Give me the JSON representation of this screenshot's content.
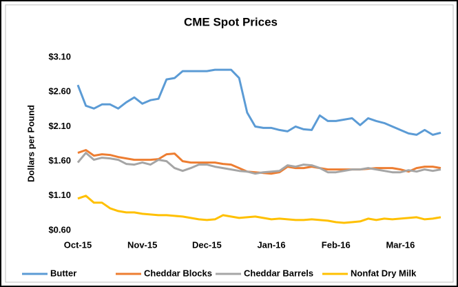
{
  "chart_data": {
    "type": "line",
    "title": "CME Spot Prices",
    "y_label": "Dollars per Pound",
    "categories": [
      "Oct-15",
      null,
      null,
      null,
      null,
      null,
      null,
      null,
      "Nov-15",
      null,
      null,
      null,
      null,
      null,
      null,
      null,
      "Dec-15",
      null,
      null,
      null,
      null,
      null,
      null,
      null,
      "Jan-16",
      null,
      null,
      null,
      null,
      null,
      null,
      null,
      "Feb-16",
      null,
      null,
      null,
      null,
      null,
      null,
      null,
      "Mar-16",
      null,
      null,
      null,
      null,
      null
    ],
    "series": [
      {
        "name": "Butter",
        "color": "#5b9bd5",
        "values": [
          2.7,
          2.4,
          2.36,
          2.42,
          2.42,
          2.36,
          2.45,
          2.52,
          2.43,
          2.48,
          2.5,
          2.78,
          2.8,
          2.9,
          2.9,
          2.9,
          2.9,
          2.92,
          2.92,
          2.92,
          2.8,
          2.3,
          2.1,
          2.08,
          2.08,
          2.05,
          2.03,
          2.1,
          2.06,
          2.05,
          2.26,
          2.18,
          2.18,
          2.2,
          2.22,
          2.12,
          2.22,
          2.18,
          2.15,
          2.1,
          2.05,
          2.0,
          1.98,
          2.05,
          1.98,
          2.01
        ]
      },
      {
        "name": "Cheddar Blocks",
        "color": "#ed7d31",
        "values": [
          1.72,
          1.76,
          1.68,
          1.7,
          1.69,
          1.66,
          1.64,
          1.62,
          1.62,
          1.62,
          1.63,
          1.7,
          1.71,
          1.6,
          1.58,
          1.58,
          1.58,
          1.58,
          1.56,
          1.55,
          1.5,
          1.45,
          1.44,
          1.43,
          1.42,
          1.44,
          1.52,
          1.5,
          1.5,
          1.52,
          1.5,
          1.48,
          1.48,
          1.48,
          1.48,
          1.48,
          1.49,
          1.5,
          1.5,
          1.5,
          1.48,
          1.45,
          1.5,
          1.52,
          1.52,
          1.5
        ]
      },
      {
        "name": "Cheddar Barrels",
        "color": "#a5a5a5",
        "values": [
          1.58,
          1.72,
          1.62,
          1.65,
          1.64,
          1.62,
          1.56,
          1.55,
          1.58,
          1.55,
          1.62,
          1.6,
          1.5,
          1.46,
          1.5,
          1.55,
          1.55,
          1.52,
          1.5,
          1.48,
          1.46,
          1.45,
          1.42,
          1.44,
          1.45,
          1.46,
          1.54,
          1.52,
          1.55,
          1.54,
          1.5,
          1.44,
          1.44,
          1.46,
          1.48,
          1.48,
          1.5,
          1.48,
          1.46,
          1.44,
          1.44,
          1.47,
          1.45,
          1.48,
          1.46,
          1.48
        ]
      },
      {
        "name": "Nonfat Dry Milk",
        "color": "#ffc000",
        "values": [
          1.06,
          1.1,
          1.0,
          1.0,
          0.92,
          0.88,
          0.86,
          0.86,
          0.84,
          0.83,
          0.82,
          0.82,
          0.81,
          0.8,
          0.78,
          0.76,
          0.75,
          0.76,
          0.82,
          0.8,
          0.78,
          0.79,
          0.8,
          0.78,
          0.76,
          0.77,
          0.76,
          0.75,
          0.75,
          0.76,
          0.75,
          0.74,
          0.72,
          0.71,
          0.72,
          0.73,
          0.77,
          0.75,
          0.77,
          0.76,
          0.77,
          0.78,
          0.79,
          0.76,
          0.77,
          0.79
        ]
      }
    ],
    "ylim": [
      0.6,
      3.1
    ],
    "yticks": [
      {
        "value": 0.6,
        "label": "$0.60"
      },
      {
        "value": 1.1,
        "label": "$1.10"
      },
      {
        "value": 1.6,
        "label": "$1.60"
      },
      {
        "value": 2.1,
        "label": "$2.10"
      },
      {
        "value": 2.6,
        "label": "$2.60"
      },
      {
        "value": 3.1,
        "label": "$3.10"
      }
    ],
    "grid": false,
    "legend": "bottom"
  }
}
